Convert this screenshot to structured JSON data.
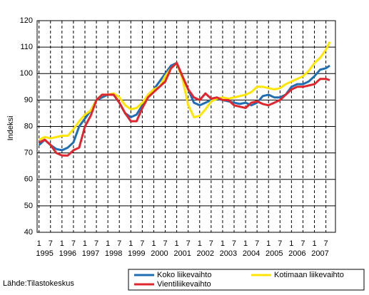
{
  "chart_data": {
    "type": "line",
    "y_label": "Indeksi",
    "source": "Lähde:Tilastokeskus",
    "x": [
      "1995-01",
      "1995-04",
      "1995-07",
      "1995-10",
      "1996-01",
      "1996-04",
      "1996-07",
      "1996-10",
      "1997-01",
      "1997-04",
      "1997-07",
      "1997-10",
      "1998-01",
      "1998-04",
      "1998-07",
      "1998-10",
      "1999-01",
      "1999-04",
      "1999-07",
      "1999-10",
      "2000-01",
      "2000-04",
      "2000-07",
      "2000-10",
      "2001-01",
      "2001-04",
      "2001-07",
      "2001-10",
      "2002-01",
      "2002-04",
      "2002-07",
      "2002-10",
      "2003-01",
      "2003-04",
      "2003-07",
      "2003-10",
      "2004-01",
      "2004-04",
      "2004-07",
      "2004-10",
      "2005-01",
      "2005-04",
      "2005-07",
      "2005-10",
      "2006-01",
      "2006-04",
      "2006-07",
      "2006-10",
      "2007-01",
      "2007-04",
      "2007-07",
      "2007-09"
    ],
    "series": [
      {
        "name": "Koko liikevaihto",
        "color": "#1f6eb4",
        "values": [
          73,
          75,
          73,
          71.5,
          71,
          72,
          74,
          80,
          83,
          86,
          90,
          91,
          92,
          92,
          89,
          85,
          83.5,
          84.5,
          88,
          92,
          94,
          97,
          100,
          103,
          104,
          99,
          94,
          89,
          88,
          89,
          90,
          90.5,
          90,
          89.5,
          89,
          88.5,
          89,
          88,
          89,
          91.5,
          92,
          91,
          91,
          92,
          95,
          96,
          96,
          97,
          99,
          101.5,
          102,
          103
        ]
      },
      {
        "name": "Kotimaan liikevaihto",
        "color": "#ffe500",
        "values": [
          75,
          76,
          75.5,
          76,
          76.5,
          76.5,
          79,
          82,
          84.5,
          86,
          90,
          92,
          92,
          92.5,
          91,
          88,
          86.5,
          87,
          89,
          92,
          94,
          95,
          99,
          102,
          104,
          98,
          88,
          83.5,
          84,
          86.5,
          89.5,
          90.5,
          91,
          90.5,
          91,
          91.5,
          92,
          93,
          95,
          95,
          94.5,
          94,
          94.5,
          96,
          97,
          98,
          99,
          101,
          104,
          106,
          109,
          112
        ]
      },
      {
        "name": "Vientiliikevaihto",
        "color": "#e0262d",
        "values": [
          74,
          75,
          73,
          70,
          69,
          69,
          71,
          72,
          80,
          84,
          90,
          92,
          92,
          92,
          89,
          85,
          82,
          82,
          87,
          91,
          93,
          95,
          97,
          102,
          104,
          99,
          94,
          91,
          90,
          92.5,
          90.5,
          91,
          90,
          90,
          88,
          87.5,
          87,
          89,
          89.5,
          88.5,
          88,
          89,
          90,
          92,
          94,
          95,
          95,
          95.5,
          96,
          98,
          98,
          97.5
        ]
      }
    ],
    "xlim": [
      "1994-12",
      "2007-12"
    ],
    "xticks": [
      {
        "value": "1995-01",
        "label": "1"
      },
      {
        "value": "1995-07",
        "label": "7"
      },
      {
        "value": "1996-01",
        "label": "1"
      },
      {
        "value": "1996-07",
        "label": "7"
      },
      {
        "value": "1997-01",
        "label": "1"
      },
      {
        "value": "1997-07",
        "label": "7"
      },
      {
        "value": "1998-01",
        "label": "1"
      },
      {
        "value": "1998-07",
        "label": "7"
      },
      {
        "value": "1999-01",
        "label": "1"
      },
      {
        "value": "1999-07",
        "label": "7"
      },
      {
        "value": "2000-01",
        "label": "1"
      },
      {
        "value": "2000-07",
        "label": "7"
      },
      {
        "value": "2001-01",
        "label": "1"
      },
      {
        "value": "2001-07",
        "label": "7"
      },
      {
        "value": "2002-01",
        "label": "1"
      },
      {
        "value": "2002-07",
        "label": "7"
      },
      {
        "value": "2003-01",
        "label": "1"
      },
      {
        "value": "2003-07",
        "label": "7"
      },
      {
        "value": "2004-01",
        "label": "1"
      },
      {
        "value": "2004-07",
        "label": "7"
      },
      {
        "value": "2005-01",
        "label": "1"
      },
      {
        "value": "2005-07",
        "label": "7"
      },
      {
        "value": "2006-01",
        "label": "1"
      },
      {
        "value": "2006-07",
        "label": "7"
      },
      {
        "value": "2007-01",
        "label": "1"
      },
      {
        "value": "2007-07",
        "label": "7"
      }
    ],
    "year_labels": [
      {
        "value": "1995-01",
        "label": "1995"
      },
      {
        "value": "1996-01",
        "label": "1996"
      },
      {
        "value": "1997-01",
        "label": "1997"
      },
      {
        "value": "1998-01",
        "label": "1998"
      },
      {
        "value": "1999-01",
        "label": "1999"
      },
      {
        "value": "2000-01",
        "label": "2000"
      },
      {
        "value": "2001-01",
        "label": "2001"
      },
      {
        "value": "2002-01",
        "label": "2002"
      },
      {
        "value": "2003-01",
        "label": "2003"
      },
      {
        "value": "2004-01",
        "label": "2004"
      },
      {
        "value": "2005-01",
        "label": "2005"
      },
      {
        "value": "2006-01",
        "label": "2006"
      },
      {
        "value": "2007-01",
        "label": "2007"
      }
    ],
    "ylim": [
      40,
      120
    ],
    "yticks": [
      40,
      50,
      60,
      70,
      80,
      90,
      100,
      110,
      120
    ],
    "grid": true
  }
}
